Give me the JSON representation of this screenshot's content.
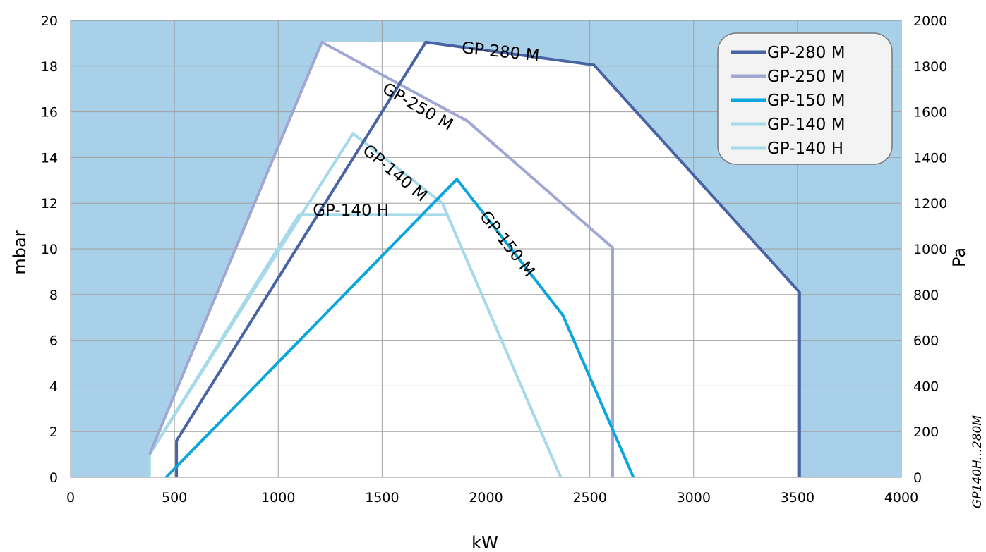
{
  "chart_data": {
    "type": "line",
    "xlabel": "kW",
    "ylabel": "mbar",
    "y2label": "Pa",
    "xlim": [
      0,
      4000
    ],
    "ylim": [
      0,
      20
    ],
    "y2lim": [
      0,
      2000
    ],
    "xticks": [
      "0",
      "500",
      "1000",
      "1500",
      "2000",
      "2500",
      "3000",
      "3500",
      "4000"
    ],
    "yticks": [
      "0",
      "2",
      "4",
      "6",
      "8",
      "10",
      "12",
      "14",
      "16",
      "18",
      "20"
    ],
    "y2ticks": [
      "0",
      "200",
      "400",
      "600",
      "800",
      "1000",
      "1200",
      "1400",
      "1600",
      "1800",
      "2000"
    ],
    "grid": true,
    "legend_position": "top-right",
    "side_note": "GP140H...280M",
    "colors": {
      "outside_region": "#a9d0e9",
      "inside_region": "#ffffff",
      "grid": "#a0a0a0"
    },
    "series": [
      {
        "name": "GP-280 M",
        "color": "#4864a4",
        "x": [
          510,
          510,
          1710,
          2520,
          3510,
          3510
        ],
        "y": [
          0,
          1.6,
          19.05,
          18.05,
          8.1,
          0
        ]
      },
      {
        "name": "GP-250 M",
        "color": "#a0a7d2",
        "x": [
          380,
          1210,
          1910,
          2610,
          2610
        ],
        "y": [
          1.0,
          19.05,
          15.6,
          10.05,
          0
        ]
      },
      {
        "name": "GP-150 M",
        "color": "#0aa6dc",
        "x": [
          460,
          1860,
          2370,
          2710
        ],
        "y": [
          0,
          13.05,
          7.1,
          0
        ]
      },
      {
        "name": "GP-140 M",
        "color": "#a6d9ea",
        "x": [
          380,
          1360,
          1790,
          2360
        ],
        "y": [
          1.0,
          15.05,
          12.0,
          0
        ]
      },
      {
        "name": "GP-140 H",
        "color": "#a6d9ea",
        "x": [
          380,
          380,
          1100,
          1820
        ],
        "y": [
          0,
          1.0,
          11.5,
          11.5
        ]
      }
    ],
    "annotations": [
      {
        "text": "GP-280 M",
        "x": 2070,
        "y": 18.6,
        "angle": 6
      },
      {
        "text": "GP-250 M",
        "x": 1670,
        "y": 16.2,
        "angle": 30
      },
      {
        "text": "GP-140 M",
        "x": 1560,
        "y": 13.3,
        "angle": 40
      },
      {
        "text": "GP-140 H",
        "x": 1350,
        "y": 11.65,
        "angle": 0
      },
      {
        "text": "GP-150 M",
        "x": 2100,
        "y": 10.2,
        "angle": 52
      }
    ]
  }
}
